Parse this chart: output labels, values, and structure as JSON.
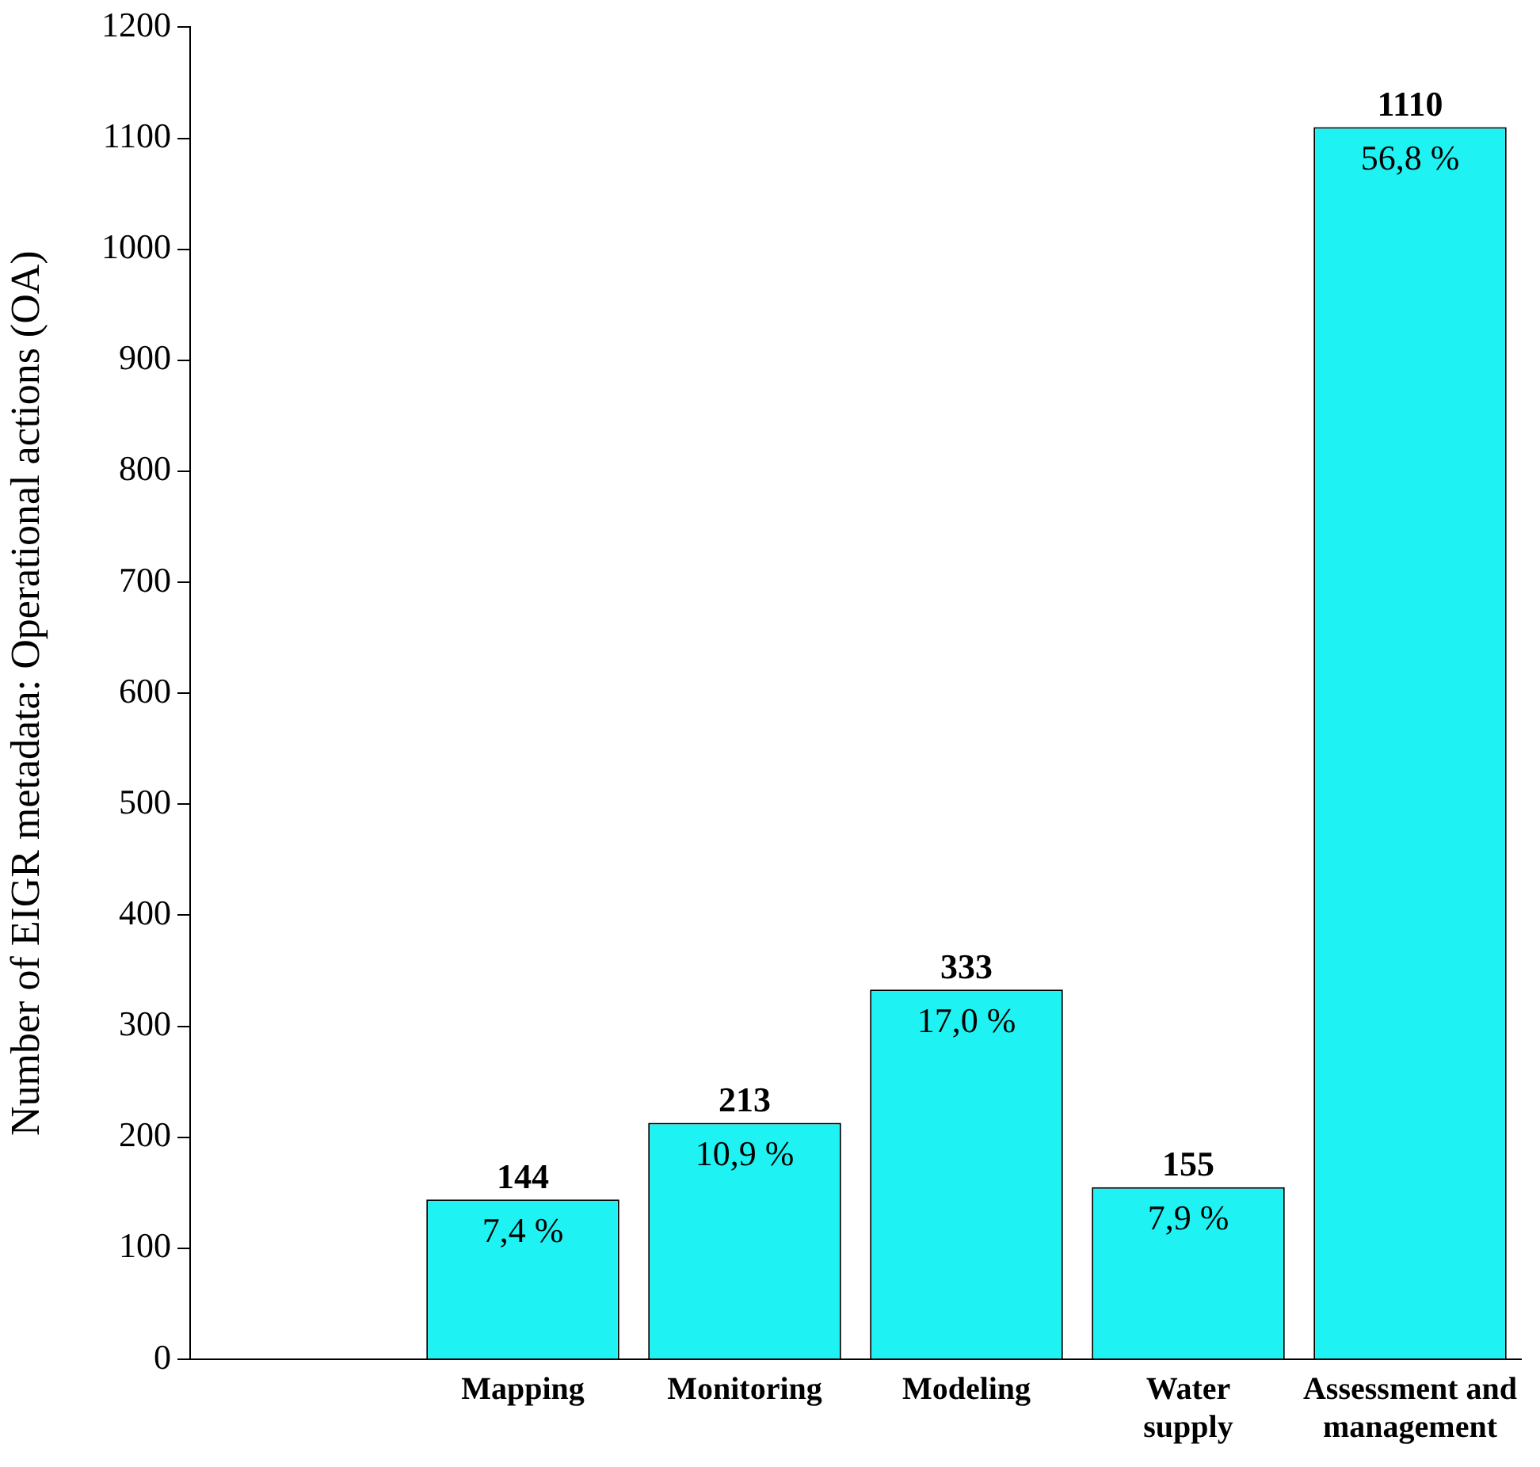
{
  "chart_data": {
    "type": "bar",
    "ylabel": "Number of EIGR metadata: Operational actions (OA)",
    "categories": [
      "Mapping",
      "Monitoring",
      "Modeling",
      "Water supply",
      "Assessment and management"
    ],
    "values": [
      144,
      213,
      333,
      155,
      1110
    ],
    "annotations": [
      {
        "text": "7,4 %",
        "x": "Mapping",
        "y": 144
      },
      {
        "text": "10,9 %",
        "x": "Monitoring",
        "y": 213
      },
      {
        "text": "17,0 %",
        "x": "Modeling",
        "y": 333
      },
      {
        "text": "7,9 %",
        "x": "Water supply",
        "y": 155
      },
      {
        "text": "56,8 %",
        "x": "Assessment and management",
        "y": 1110
      }
    ],
    "data_labels": true,
    "color": "#1ff2f2",
    "ylim": [
      0,
      1200
    ],
    "yticks": [
      0,
      100,
      200,
      300,
      400,
      500,
      600,
      700,
      800,
      900,
      1000,
      1100,
      1200
    ],
    "grid": false,
    "legend": false
  }
}
